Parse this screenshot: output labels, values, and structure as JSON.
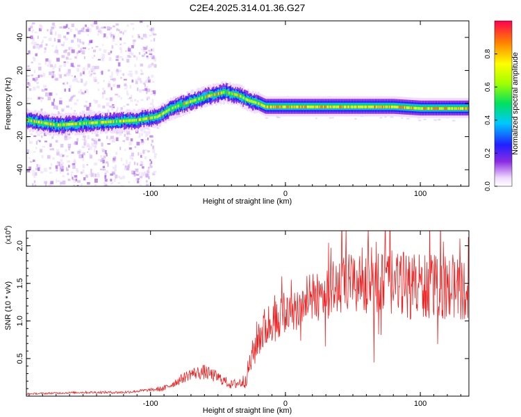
{
  "figure": {
    "title": "C2E4.2025.314.01.36.G27"
  },
  "chart_data": [
    {
      "type": "heatmap",
      "xlabel": "Height of straight line (km)",
      "ylabel": "Frequency (Hz)",
      "xlim": [
        -192,
        136
      ],
      "ylim": [
        -50,
        50
      ],
      "xticks": [
        -100,
        0,
        100
      ],
      "yticks": [
        -40,
        -20,
        0,
        20,
        40
      ],
      "ridge": [
        [
          -192,
          -10
        ],
        [
          -170,
          -13
        ],
        [
          -150,
          -12
        ],
        [
          -130,
          -11
        ],
        [
          -110,
          -10
        ],
        [
          -95,
          -8
        ],
        [
          -85,
          -3
        ],
        [
          -75,
          0
        ],
        [
          -60,
          4
        ],
        [
          -45,
          7
        ],
        [
          -35,
          5
        ],
        [
          -28,
          2
        ],
        [
          -20,
          0
        ],
        [
          -15,
          -2
        ],
        [
          0,
          -2
        ],
        [
          40,
          -2
        ],
        [
          80,
          -2
        ],
        [
          100,
          -3
        ],
        [
          136,
          -3
        ]
      ],
      "colorbar": {
        "label": "Normalized spectral amplitude",
        "ticks": [
          0.0,
          0.2,
          0.4,
          0.6,
          0.8
        ],
        "tick_labels": [
          "0.0",
          "0.2",
          "0.4",
          "0.6",
          "0.8"
        ],
        "range": [
          0,
          1
        ]
      }
    },
    {
      "type": "line",
      "xlabel": "Height of straight line (km)",
      "ylabel": "SNR (10 * v/v)",
      "yscale_label": "(x10",
      "yscale_exp": "4",
      "xlim": [
        -192,
        136
      ],
      "ylim": [
        0,
        2.2
      ],
      "xticks": [
        -100,
        0,
        100
      ],
      "yticks": [
        0.5,
        1.0,
        1.5,
        2.0
      ],
      "ytick_labels": [
        "0.5",
        "1.0",
        "1.5",
        "2.0"
      ],
      "series": [
        {
          "name": "SNR",
          "color": "#ee2222",
          "envelope": [
            [
              -192,
              0.03
            ],
            [
              -150,
              0.05
            ],
            [
              -120,
              0.05
            ],
            [
              -90,
              0.1
            ],
            [
              -80,
              0.2
            ],
            [
              -70,
              0.3
            ],
            [
              -60,
              0.32
            ],
            [
              -50,
              0.25
            ],
            [
              -40,
              0.15
            ],
            [
              -30,
              0.2
            ],
            [
              -25,
              0.5
            ],
            [
              -20,
              0.8
            ],
            [
              -10,
              1.0
            ],
            [
              0,
              1.1
            ],
            [
              10,
              1.2
            ],
            [
              20,
              1.3
            ],
            [
              30,
              1.4
            ],
            [
              40,
              1.45
            ],
            [
              60,
              1.55
            ],
            [
              80,
              1.5
            ],
            [
              100,
              1.45
            ],
            [
              120,
              1.45
            ],
            [
              136,
              1.4
            ]
          ],
          "noise_amplitude": [
            [
              -192,
              0.01
            ],
            [
              -100,
              0.02
            ],
            [
              -80,
              0.06
            ],
            [
              -60,
              0.1
            ],
            [
              -40,
              0.06
            ],
            [
              -30,
              0.1
            ],
            [
              -20,
              0.3
            ],
            [
              0,
              0.3
            ],
            [
              20,
              0.35
            ],
            [
              60,
              0.45
            ],
            [
              100,
              0.45
            ],
            [
              136,
              0.4
            ]
          ]
        }
      ]
    }
  ]
}
